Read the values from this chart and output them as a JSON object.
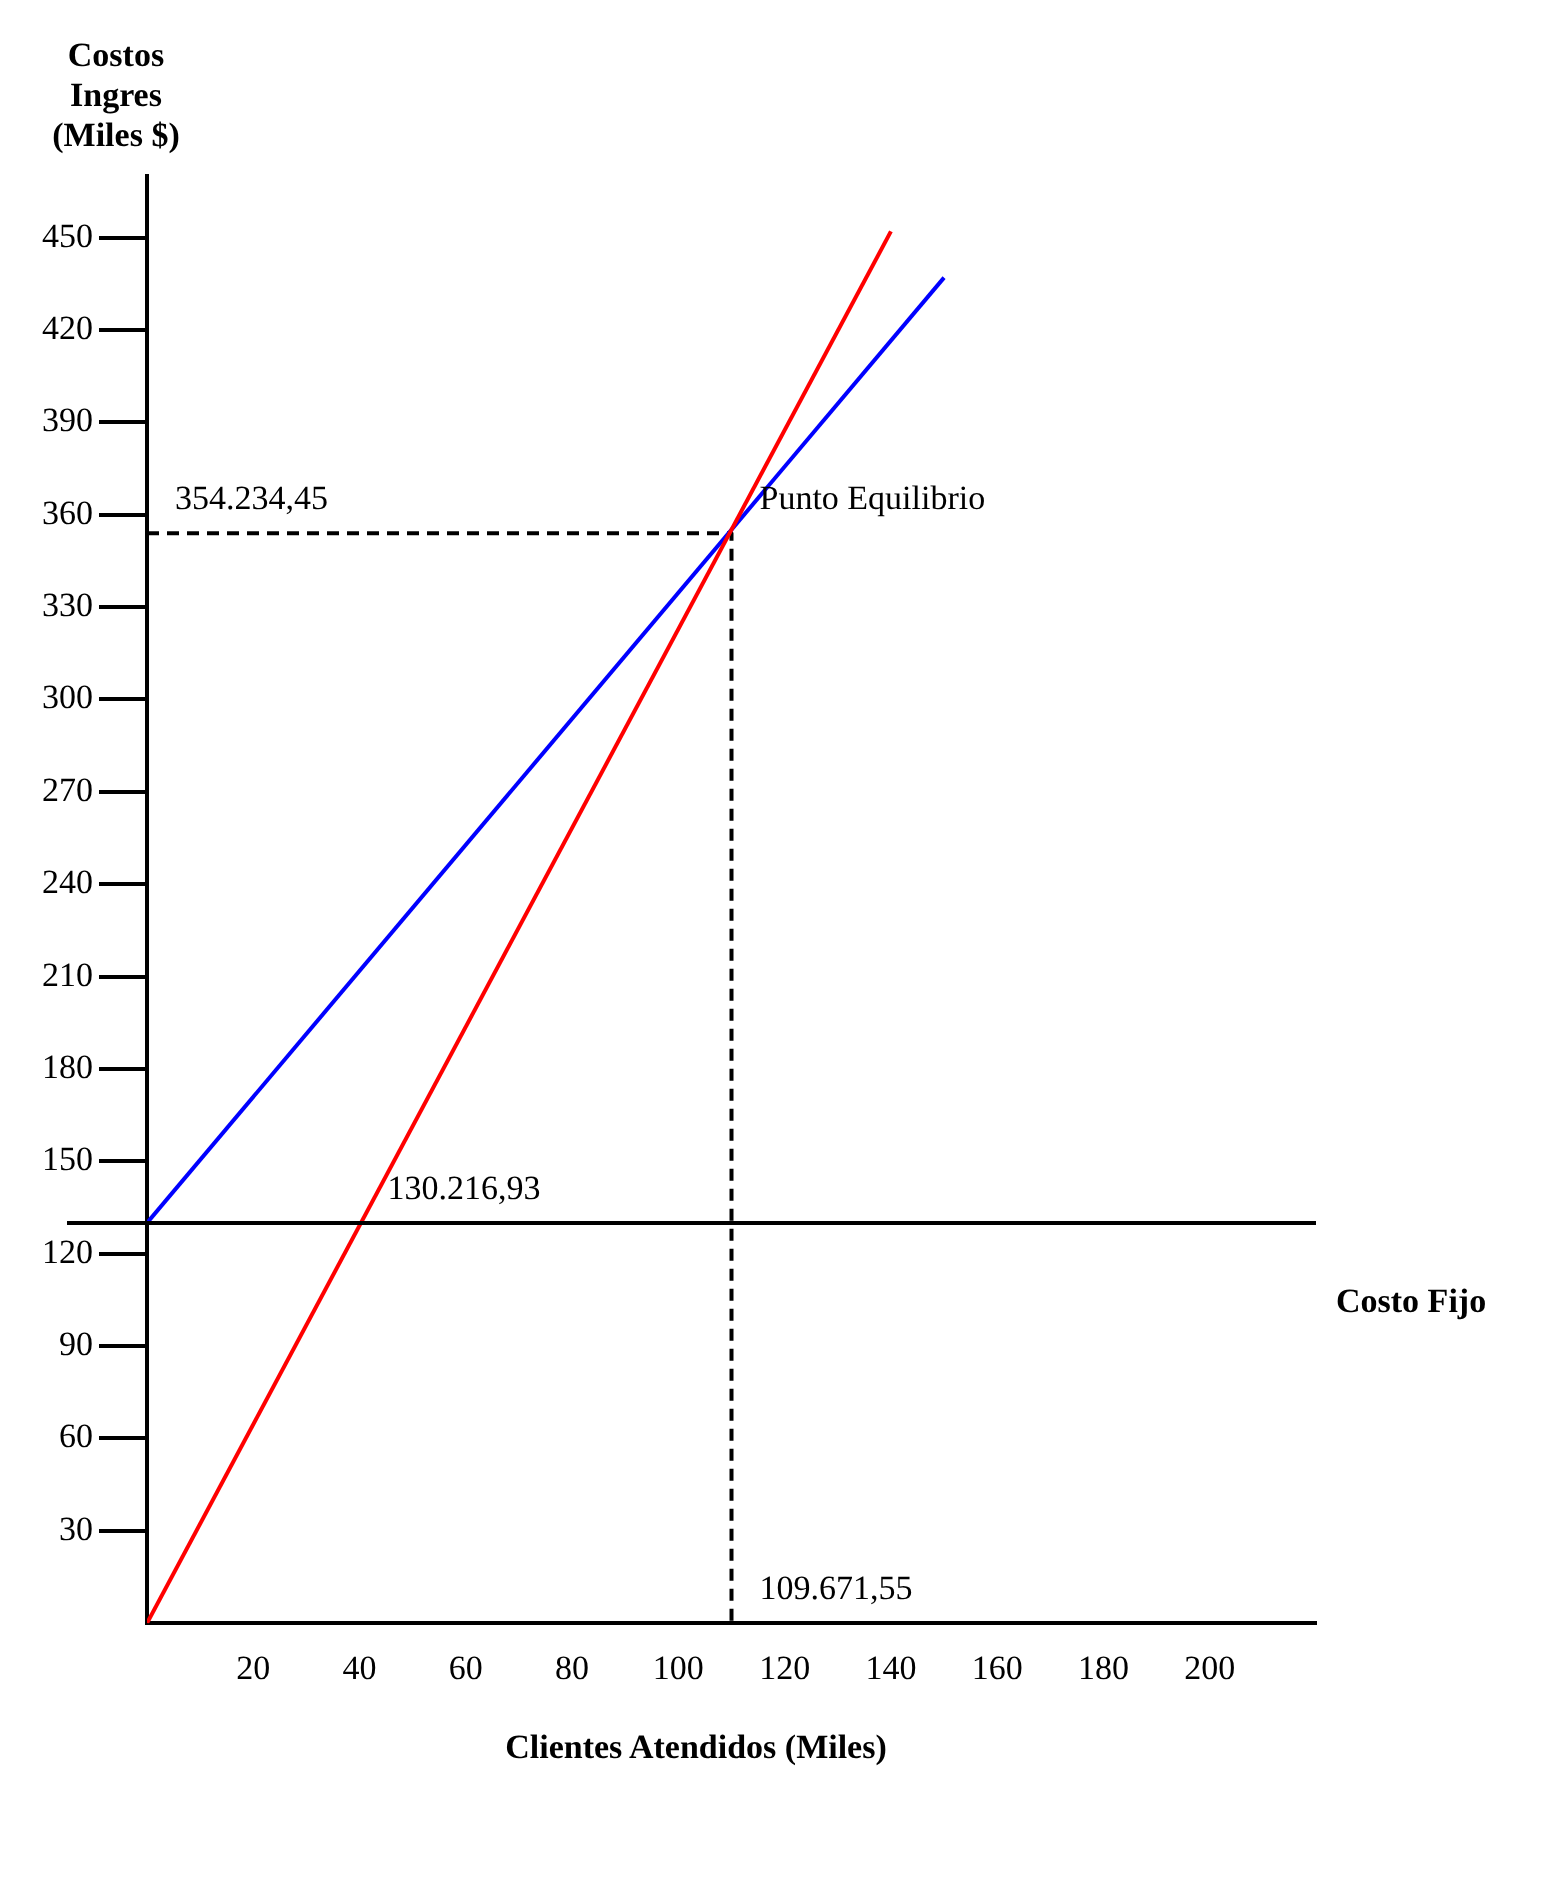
{
  "chart_data": {
    "type": "line",
    "ylabel": "Costos Ingres (Miles $)",
    "xlabel": "Clientes Atendidos (Miles)",
    "xlim": [
      0,
      220
    ],
    "xticks": [
      20,
      40,
      60,
      80,
      100,
      120,
      140,
      160,
      180,
      200
    ],
    "ylim": [
      0,
      470
    ],
    "yticks": [
      30,
      60,
      90,
      120,
      150,
      180,
      210,
      240,
      270,
      300,
      330,
      360,
      390,
      420,
      450
    ],
    "marker": "none",
    "series": [
      {
        "color": "#ff0000",
        "x": [
          0,
          140
        ],
        "values": [
          0,
          452
        ]
      },
      {
        "color": "#0000ff",
        "x": [
          0,
          150
        ],
        "values": [
          130,
          437
        ]
      },
      {
        "color": "#000000",
        "line_style": "dashed",
        "x": [
          0,
          110,
          110
        ],
        "values": [
          354,
          354,
          0
        ]
      }
    ],
    "ref_lines": [
      {
        "axis": "y",
        "value": 130,
        "label": "Costo Fijo",
        "color": "#000000"
      }
    ],
    "annotations": [
      {
        "text": "354.234,45",
        "x": 0,
        "y": 354
      },
      {
        "text": "Punto Equilibrio",
        "x": 110,
        "y": 354
      },
      {
        "text": "130.216,93",
        "x": 40,
        "y": 130
      },
      {
        "text": "109.671,55",
        "x": 110,
        "y": 0
      }
    ]
  }
}
